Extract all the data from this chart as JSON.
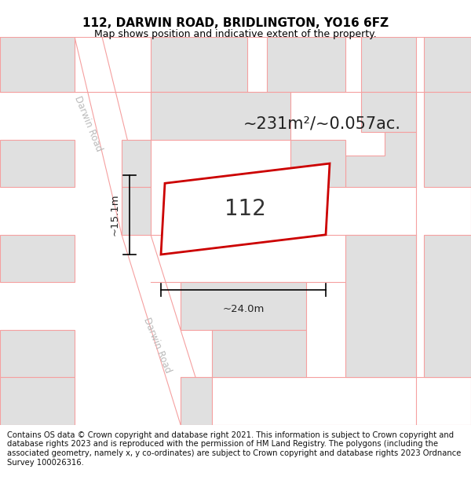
{
  "title_line1": "112, DARWIN ROAD, BRIDLINGTON, YO16 6FZ",
  "title_line2": "Map shows position and indicative extent of the property.",
  "copyright_text": "Contains OS data © Crown copyright and database right 2021. This information is subject to Crown copyright and database rights 2023 and is reproduced with the permission of HM Land Registry. The polygons (including the associated geometry, namely x, y co-ordinates) are subject to Crown copyright and database rights 2023 Ordnance Survey 100026316.",
  "area_text": "~231m²/~0.057ac.",
  "plot_number": "112",
  "dim_width": "~24.0m",
  "dim_height": "~15.1m",
  "road_label": "Darwin Road",
  "map_bg": "#ffffff",
  "block_fill": "#e0e0e0",
  "block_edge": "#f5a0a0",
  "road_edge": "#f5a0a0",
  "plot_edge": "#cc0000",
  "plot_fill": "#ffffff",
  "title_fontsize": 11,
  "subtitle_fontsize": 9,
  "area_fontsize": 15,
  "plot_num_fontsize": 20,
  "dim_fontsize": 9.5,
  "copyright_fontsize": 7.2,
  "road_label_color": "#bbbbbb",
  "road_label_fontsize": 8.5
}
